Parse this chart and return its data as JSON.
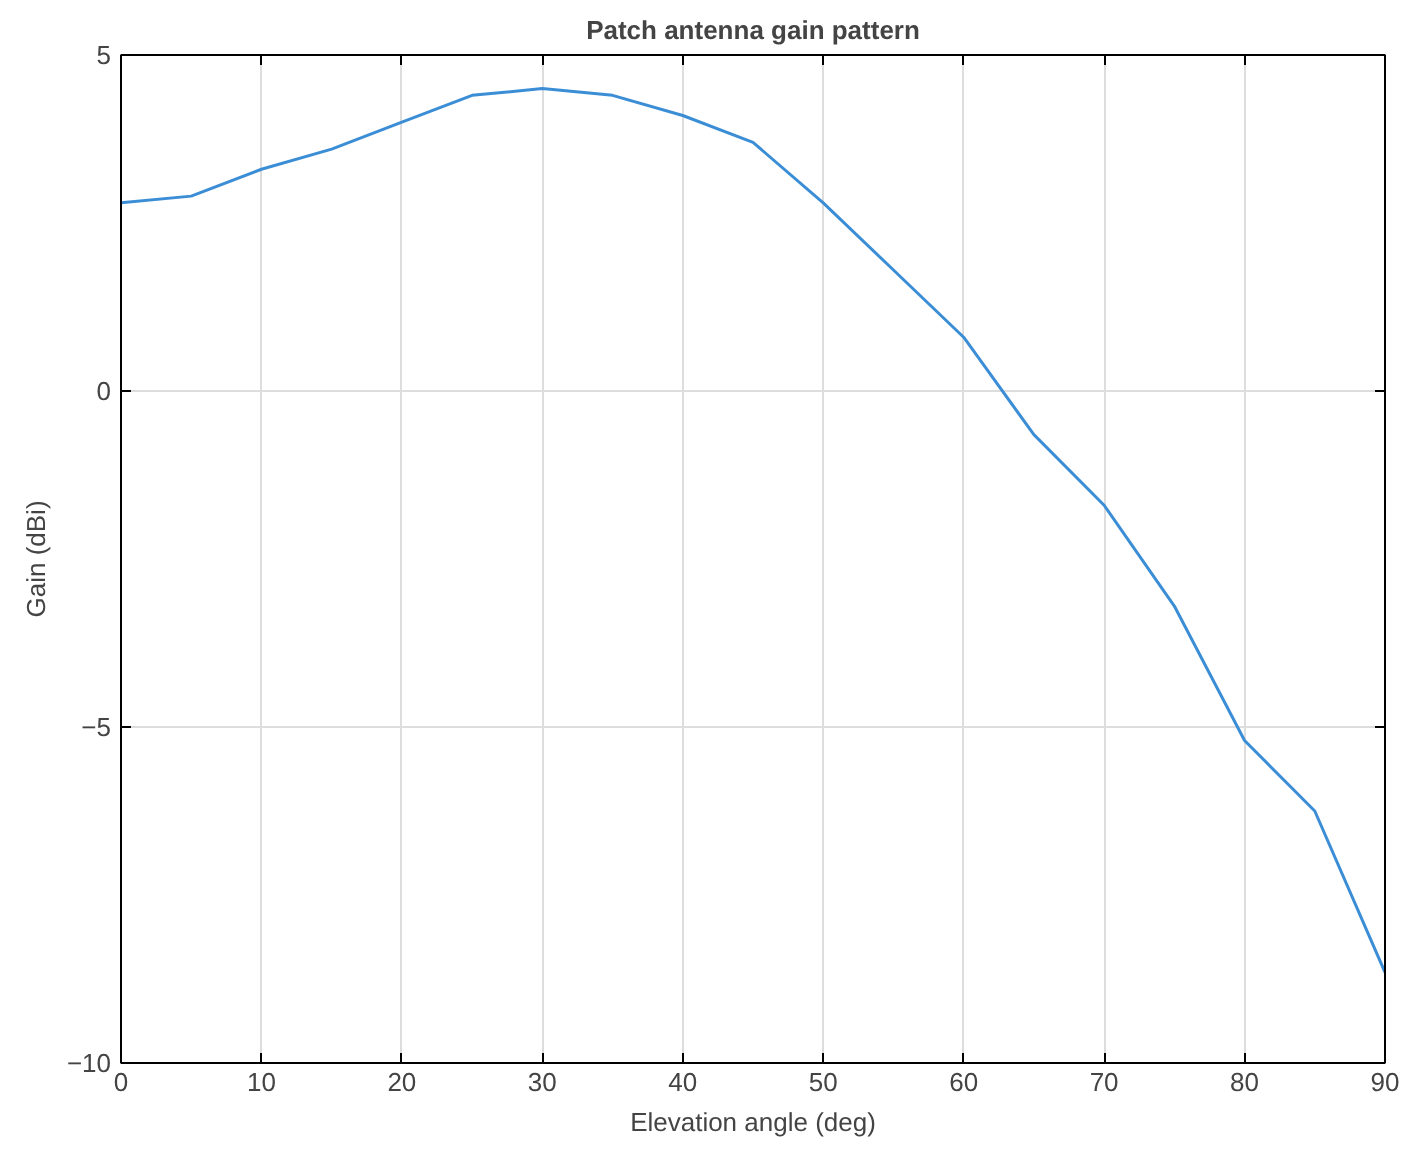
{
  "chart_data": {
    "type": "line",
    "title": "Patch antenna gain pattern",
    "xlabel": "Elevation angle (deg)",
    "ylabel": "Gain (dBi)",
    "x": [
      0,
      5,
      10,
      15,
      20,
      25,
      30,
      35,
      40,
      45,
      50,
      55,
      60,
      65,
      70,
      75,
      80,
      85,
      90
    ],
    "series": [
      {
        "color": "#3b8ed6",
        "values": [
          2.8,
          2.9,
          3.3,
          3.6,
          4.0,
          4.4,
          4.5,
          4.4,
          4.1,
          3.7,
          2.8,
          1.8,
          0.8,
          -0.65,
          -1.7,
          -3.2,
          -5.2,
          -6.25,
          -8.65
        ]
      }
    ],
    "xlim": [
      0,
      90
    ],
    "ylim": [
      -10,
      5
    ],
    "xticks": [
      0,
      10,
      20,
      30,
      40,
      50,
      60,
      70,
      80,
      90
    ],
    "yticks": [
      -10,
      -5,
      0,
      5
    ],
    "grid": true
  }
}
